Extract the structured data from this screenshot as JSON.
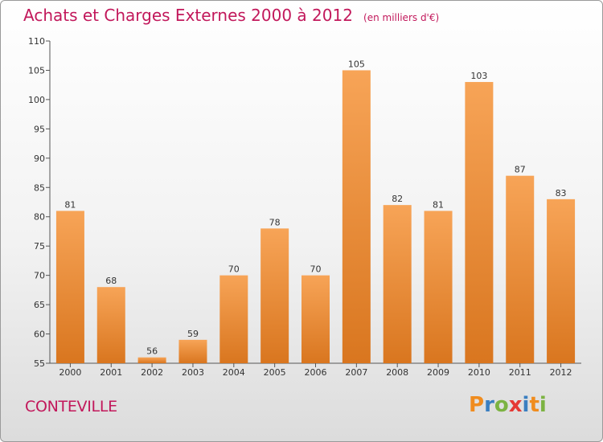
{
  "title": "Achats et Charges Externes 2000 à 2012",
  "unit_note": "(en milliers d'€)",
  "commune": "CONTEVILLE",
  "brand": {
    "letters": [
      "P",
      "r",
      "o",
      "x",
      "i",
      "t",
      "i"
    ],
    "colors": [
      "#f08c1e",
      "#3a7fc1",
      "#7cb342",
      "#e53935",
      "#3a7fc1",
      "#f08c1e",
      "#7cb342"
    ]
  },
  "colors": {
    "title": "#c2185b",
    "bar_light": "#f7a457",
    "bar_dark": "#d9761f"
  },
  "chart_data": {
    "type": "bar",
    "categories": [
      "2000",
      "2001",
      "2002",
      "2003",
      "2004",
      "2005",
      "2006",
      "2007",
      "2008",
      "2009",
      "2010",
      "2011",
      "2012"
    ],
    "values": [
      81,
      68,
      56,
      59,
      70,
      78,
      70,
      105,
      82,
      81,
      103,
      87,
      83
    ],
    "ylim": [
      55,
      110
    ],
    "yticks": [
      55,
      60,
      65,
      70,
      75,
      80,
      85,
      90,
      95,
      100,
      105,
      110
    ],
    "grid": false,
    "data_labels": true
  }
}
